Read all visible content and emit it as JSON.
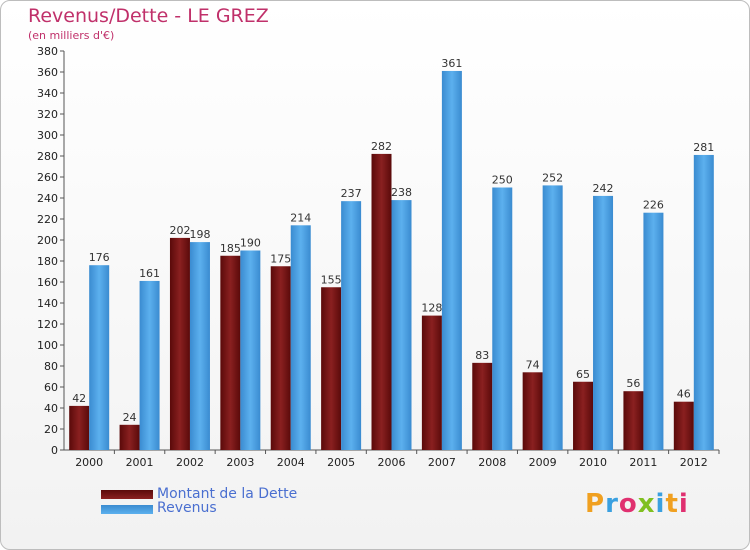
{
  "page": {
    "title": "Revenus/Dette - LE GREZ",
    "subtitle": "(en milliers d'€)",
    "logo_text": "Proxiti"
  },
  "colors": {
    "series1": "#7a1414",
    "series2": "#4a9fe0",
    "title": "#c0306a",
    "legend_text": "#4a6fd0"
  },
  "chart_data": {
    "type": "bar",
    "title": "Revenus/Dette - LE GREZ",
    "subtitle": "(en milliers d'€)",
    "categories": [
      "2000",
      "2001",
      "2002",
      "2003",
      "2004",
      "2005",
      "2006",
      "2007",
      "2008",
      "2009",
      "2010",
      "2011",
      "2012"
    ],
    "series": [
      {
        "name": "Montant de la Dette",
        "values": [
          42,
          24,
          202,
          185,
          175,
          155,
          282,
          128,
          83,
          74,
          65,
          56,
          46
        ]
      },
      {
        "name": "Revenus",
        "values": [
          176,
          161,
          198,
          190,
          214,
          237,
          238,
          361,
          250,
          252,
          242,
          226,
          281
        ]
      }
    ],
    "ylim": [
      0,
      380
    ],
    "ytick_step": 20,
    "grid": false,
    "legend_position": "bottom-left"
  }
}
